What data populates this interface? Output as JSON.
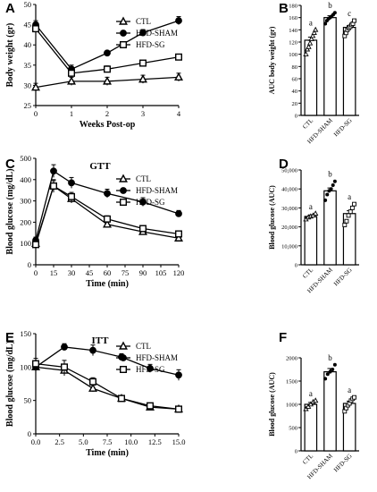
{
  "chart_data": [
    {
      "panel": "A",
      "type": "line",
      "xlabel": "Weeks Post-op",
      "ylabel": "Body weight (gr)",
      "xlim": [
        0,
        4
      ],
      "ylim": [
        25,
        50
      ],
      "xticks": [
        0,
        1,
        2,
        3,
        4
      ],
      "yticks": [
        25,
        30,
        35,
        40,
        45,
        50
      ],
      "legend_position": "top-center",
      "series": [
        {
          "name": "CTL",
          "marker": "triangle",
          "x": [
            0,
            1,
            2,
            3,
            4
          ],
          "y": [
            29.5,
            31,
            31,
            31.5,
            32
          ],
          "err": [
            1,
            1,
            1,
            1,
            1
          ]
        },
        {
          "name": "HFD-SHAM",
          "marker": "circle",
          "x": [
            0,
            1,
            2,
            3,
            4
          ],
          "y": [
            45,
            34,
            38,
            43,
            46
          ],
          "err": [
            1,
            1,
            0.5,
            0.8,
            1
          ]
        },
        {
          "name": "HFD-SG",
          "marker": "square",
          "x": [
            0,
            1,
            2,
            3,
            4
          ],
          "y": [
            44,
            33,
            34,
            35.5,
            37
          ],
          "err": [
            1,
            1,
            0.8,
            0.6,
            0.6
          ]
        }
      ]
    },
    {
      "panel": "B",
      "type": "bar",
      "ylabel": "AUC body weight (gr)",
      "ylim": [
        0,
        180
      ],
      "yticks": [
        0,
        20,
        40,
        60,
        80,
        100,
        120,
        140,
        160,
        180
      ],
      "categories": [
        "CTL",
        "HFD-SHAM",
        "HFD-SG"
      ],
      "values": [
        123,
        160,
        144
      ],
      "err": [
        5,
        3,
        3
      ],
      "letters": [
        "a",
        "b",
        "c"
      ],
      "points": [
        [
          100,
          108,
          112,
          118,
          125,
          130,
          135,
          140
        ],
        [
          150,
          155,
          158,
          160,
          162,
          165,
          168
        ],
        [
          130,
          135,
          140,
          143,
          145,
          148,
          150,
          155
        ]
      ]
    },
    {
      "panel": "C",
      "type": "line",
      "title": "GTT",
      "xlabel": "Time (min)",
      "ylabel": "Blood glucose (mg/dL)",
      "xlim": [
        0,
        120
      ],
      "ylim": [
        0,
        500
      ],
      "xticks": [
        0,
        15,
        30,
        45,
        60,
        75,
        90,
        105,
        120
      ],
      "yticks": [
        0,
        100,
        200,
        300,
        400,
        500
      ],
      "legend_position": "top-right",
      "series": [
        {
          "name": "CTL",
          "marker": "triangle",
          "x": [
            0,
            15,
            30,
            60,
            90,
            120
          ],
          "y": [
            100,
            370,
            310,
            190,
            155,
            125
          ],
          "err": [
            10,
            25,
            20,
            15,
            10,
            10
          ]
        },
        {
          "name": "HFD-SHAM",
          "marker": "circle",
          "x": [
            0,
            15,
            30,
            60,
            90,
            120
          ],
          "y": [
            115,
            440,
            385,
            335,
            295,
            240
          ],
          "err": [
            15,
            30,
            25,
            20,
            20,
            15
          ]
        },
        {
          "name": "HFD-SG",
          "marker": "square",
          "x": [
            0,
            15,
            30,
            60,
            90,
            120
          ],
          "y": [
            95,
            370,
            320,
            215,
            170,
            145
          ],
          "err": [
            15,
            30,
            20,
            15,
            10,
            10
          ]
        }
      ]
    },
    {
      "panel": "D",
      "type": "bar",
      "ylabel": "Blood glucose (AUC)",
      "ylim": [
        0,
        50000
      ],
      "yticks": [
        0,
        10000,
        20000,
        30000,
        40000,
        50000
      ],
      "ytick_labels": [
        "0",
        "10,000",
        "20,000",
        "30,000",
        "40,000",
        "50,000"
      ],
      "categories": [
        "CTL",
        "HFD-SHAM",
        "HFD-SG"
      ],
      "values": [
        25500,
        39000,
        27000
      ],
      "err": [
        800,
        1500,
        1500
      ],
      "letters": [
        "a",
        "b",
        "a"
      ],
      "points": [
        [
          24000,
          25000,
          25500,
          26000,
          27000
        ],
        [
          34000,
          37000,
          39000,
          40000,
          42000,
          44000
        ],
        [
          21000,
          23000,
          26000,
          28000,
          30000,
          32000
        ]
      ]
    },
    {
      "panel": "E",
      "type": "line",
      "title": "ITT",
      "xlabel": "Time (min)",
      "ylabel": "Blood glucose (mg/dL)",
      "xlim": [
        0,
        15
      ],
      "ylim": [
        0,
        150
      ],
      "xticks": [
        0,
        2.5,
        5,
        7.5,
        10,
        12.5,
        15
      ],
      "xtick_labels": [
        "0.0",
        "2.5",
        "5.0",
        "7.5",
        "10.0",
        "12.5",
        "15.0"
      ],
      "yticks": [
        0,
        50,
        100,
        150
      ],
      "legend_position": "top-right",
      "series": [
        {
          "name": "CTL",
          "marker": "triangle",
          "x": [
            0,
            3,
            6,
            9,
            12,
            15
          ],
          "y": [
            100,
            95,
            68,
            53,
            40,
            37
          ],
          "err": [
            5,
            8,
            5,
            4,
            3,
            2
          ]
        },
        {
          "name": "HFD-SHAM",
          "marker": "circle",
          "x": [
            0,
            3,
            6,
            9,
            12,
            15
          ],
          "y": [
            100,
            130,
            125,
            115,
            98,
            88
          ],
          "err": [
            5,
            5,
            8,
            5,
            6,
            8
          ]
        },
        {
          "name": "HFD-SG",
          "marker": "square",
          "x": [
            0,
            3,
            6,
            9,
            12,
            15
          ],
          "y": [
            105,
            100,
            78,
            53,
            42,
            37
          ],
          "err": [
            8,
            10,
            6,
            4,
            3,
            2
          ]
        }
      ]
    },
    {
      "panel": "F",
      "type": "bar",
      "ylabel": "Blood glucose (AUC)",
      "ylim": [
        0,
        2000
      ],
      "yticks": [
        0,
        500,
        1000,
        1500,
        2000
      ],
      "categories": [
        "CTL",
        "HFD-SHAM",
        "HFD-SG"
      ],
      "values": [
        1000,
        1700,
        1020
      ],
      "err": [
        40,
        70,
        50
      ],
      "letters": [
        "a",
        "b",
        "a"
      ],
      "points": [
        [
          900,
          950,
          1000,
          1050,
          1080
        ],
        [
          1550,
          1650,
          1700,
          1750,
          1850
        ],
        [
          850,
          920,
          980,
          1020,
          1080,
          1120,
          1150
        ]
      ]
    }
  ]
}
